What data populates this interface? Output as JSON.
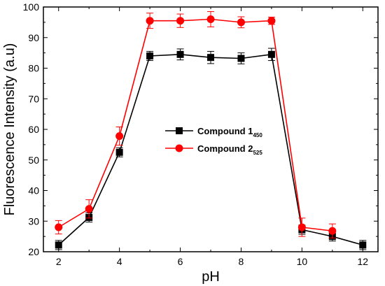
{
  "chart_data": {
    "type": "line",
    "xlabel": "pH",
    "ylabel": "Fluorescence Intensity (a.u)",
    "xlim": [
      1.5,
      12.5
    ],
    "ylim": [
      20,
      100
    ],
    "xticks": [
      2,
      4,
      6,
      8,
      10,
      12
    ],
    "yticks": [
      20,
      30,
      40,
      50,
      60,
      70,
      80,
      90,
      100
    ],
    "grid": false,
    "legend_position": "center",
    "x": [
      2,
      3,
      4,
      5,
      6,
      7,
      8,
      9,
      10,
      11,
      12
    ],
    "series": [
      {
        "name": "Compound 1",
        "subscript": "450",
        "color": "#000000",
        "marker": "square",
        "values": [
          22.2,
          31.2,
          52.5,
          84.0,
          84.5,
          83.5,
          83.2,
          84.5,
          27.2,
          25.0,
          22.2
        ],
        "errors": [
          1.5,
          1.5,
          1.5,
          1.5,
          1.8,
          2.0,
          1.8,
          2.0,
          1.5,
          1.5,
          1.5
        ]
      },
      {
        "name": "Compound 2",
        "subscript": "525",
        "color": "#ff0000",
        "marker": "circle",
        "values": [
          28.0,
          34.0,
          57.8,
          95.5,
          95.5,
          96.0,
          95.0,
          95.5,
          28.0,
          26.8,
          null
        ],
        "errors": [
          2.2,
          3.0,
          3.0,
          2.5,
          2.2,
          2.5,
          1.8,
          1.2,
          3.0,
          2.3,
          null
        ]
      }
    ]
  }
}
